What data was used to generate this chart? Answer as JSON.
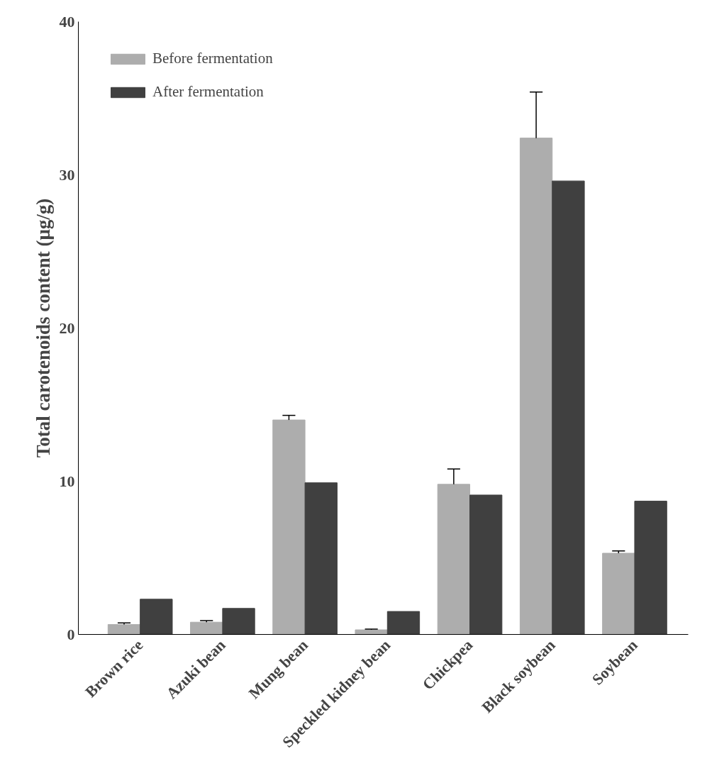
{
  "chart_data": {
    "type": "bar",
    "ylabel": "Total carotenoids content (μg/g)",
    "categories": [
      "Brown rice",
      "Azuki bean",
      "Mung bean",
      "Speckled kidney bean",
      "Chickpea",
      "Black soybean",
      "Soybean"
    ],
    "series": [
      {
        "name": "Before fermentation",
        "color": "#adadad",
        "values": [
          0.65,
          0.8,
          14.0,
          0.3,
          9.8,
          32.4,
          5.3
        ],
        "errors": [
          [
            0.65,
            0.75
          ],
          [
            0.8,
            0.9
          ],
          [
            14.0,
            14.3
          ],
          [
            0.3,
            0.35
          ],
          [
            9.8,
            10.8
          ],
          [
            32.4,
            35.4
          ],
          [
            5.3,
            5.45
          ]
        ]
      },
      {
        "name": "After fermentation",
        "color": "#404040",
        "values": [
          2.3,
          1.7,
          9.9,
          1.5,
          9.1,
          29.6,
          8.7
        ]
      }
    ],
    "ylim": [
      0,
      40
    ],
    "yticks": [
      0,
      10,
      20,
      30,
      40
    ],
    "grid": false,
    "legend": "top left"
  }
}
